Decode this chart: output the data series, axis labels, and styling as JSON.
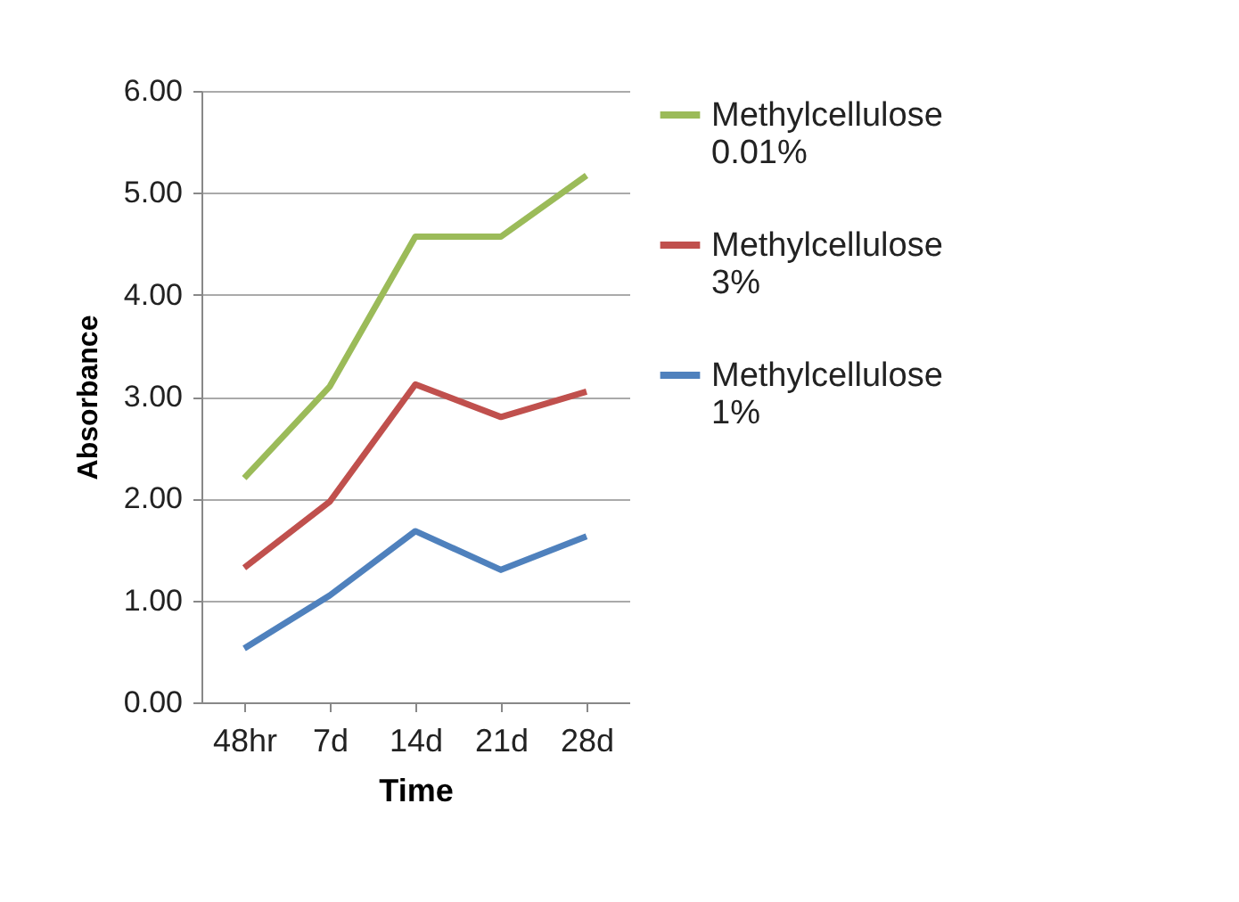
{
  "chart_data": {
    "type": "line",
    "xlabel": "Time",
    "ylabel": "Absorbance",
    "categories": [
      "48hr",
      "7d",
      "14d",
      "21d",
      "28d"
    ],
    "series": [
      {
        "name": "Methylcellulose 0.01%",
        "color": "#9bbb59",
        "values": [
          2.2,
          3.1,
          4.57,
          4.57,
          5.17
        ]
      },
      {
        "name": "Methylcellulose 3%",
        "color": "#c0504d",
        "values": [
          1.32,
          1.97,
          3.12,
          2.8,
          3.05
        ]
      },
      {
        "name": "Methylcellulose 1%",
        "color": "#4f81bd",
        "values": [
          0.53,
          1.05,
          1.68,
          1.3,
          1.63
        ]
      }
    ],
    "ylim": [
      0,
      6
    ],
    "yticks": [
      {
        "value": 0,
        "label": "0.00"
      },
      {
        "value": 1,
        "label": "1.00"
      },
      {
        "value": 2,
        "label": "2.00"
      },
      {
        "value": 3,
        "label": "3.00"
      },
      {
        "value": 4,
        "label": "4.00"
      },
      {
        "value": 5,
        "label": "5.00"
      },
      {
        "value": 6,
        "label": "6.00"
      }
    ],
    "grid": "y",
    "legend": "right",
    "marker": "none",
    "line_style": "solid"
  }
}
